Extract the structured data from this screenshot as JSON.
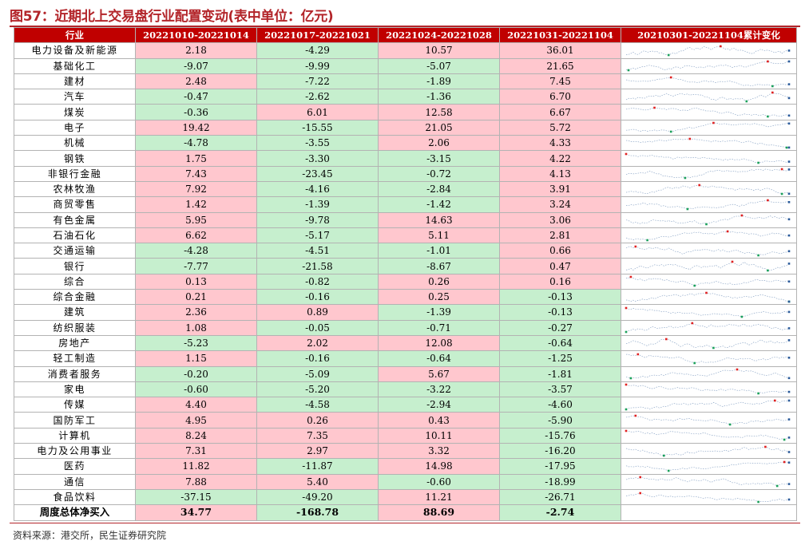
{
  "title": "图57：近期北上交易盘行业配置变动(表中单位：亿元)",
  "source": "资料来源：港交所，民生证券研究院",
  "colors": {
    "title": "#b3252a",
    "header_bg": "#c00000",
    "positive_bg": "#ffc7ce",
    "negative_bg": "#c6efce"
  },
  "headers": [
    "行业",
    "20221010-20221014",
    "20221017-20221021",
    "20221024-20221028",
    "20221031-20221104",
    "20210301-20221104累计变化"
  ],
  "rows": [
    {
      "industry": "电力设备及新能源",
      "w1": "2.18",
      "w2": "-4.29",
      "w3": "10.57",
      "w4": "36.01"
    },
    {
      "industry": "基础化工",
      "w1": "-9.07",
      "w2": "-9.99",
      "w3": "-5.07",
      "w4": "21.65"
    },
    {
      "industry": "建材",
      "w1": "2.48",
      "w2": "-7.22",
      "w3": "-1.89",
      "w4": "7.45"
    },
    {
      "industry": "汽车",
      "w1": "-0.47",
      "w2": "-2.62",
      "w3": "-1.36",
      "w4": "6.70"
    },
    {
      "industry": "煤炭",
      "w1": "-0.36",
      "w2": "6.01",
      "w3": "12.58",
      "w4": "6.67"
    },
    {
      "industry": "电子",
      "w1": "19.42",
      "w2": "-15.55",
      "w3": "21.05",
      "w4": "5.72"
    },
    {
      "industry": "机械",
      "w1": "-4.78",
      "w2": "-3.55",
      "w3": "2.06",
      "w4": "4.33"
    },
    {
      "industry": "钢铁",
      "w1": "1.75",
      "w2": "-3.30",
      "w3": "-3.15",
      "w4": "4.22"
    },
    {
      "industry": "非银行金融",
      "w1": "7.43",
      "w2": "-23.45",
      "w3": "-0.72",
      "w4": "4.13"
    },
    {
      "industry": "农林牧渔",
      "w1": "7.92",
      "w2": "-4.16",
      "w3": "-2.84",
      "w4": "3.91"
    },
    {
      "industry": "商贸零售",
      "w1": "1.42",
      "w2": "-1.39",
      "w3": "-1.42",
      "w4": "3.24"
    },
    {
      "industry": "有色金属",
      "w1": "5.95",
      "w2": "-9.78",
      "w3": "14.63",
      "w4": "3.06"
    },
    {
      "industry": "石油石化",
      "w1": "6.62",
      "w2": "-5.17",
      "w3": "5.11",
      "w4": "2.81"
    },
    {
      "industry": "交通运输",
      "w1": "-4.28",
      "w2": "-4.51",
      "w3": "-1.01",
      "w4": "0.66"
    },
    {
      "industry": "银行",
      "w1": "-7.77",
      "w2": "-21.58",
      "w3": "-8.67",
      "w4": "0.47"
    },
    {
      "industry": "综合",
      "w1": "0.13",
      "w2": "-0.82",
      "w3": "0.26",
      "w4": "0.16"
    },
    {
      "industry": "综合金融",
      "w1": "0.21",
      "w2": "-0.16",
      "w3": "0.25",
      "w4": "-0.13"
    },
    {
      "industry": "建筑",
      "w1": "2.36",
      "w2": "0.89",
      "w3": "-1.39",
      "w4": "-0.13"
    },
    {
      "industry": "纺织服装",
      "w1": "1.08",
      "w2": "-0.05",
      "w3": "-0.71",
      "w4": "-0.27"
    },
    {
      "industry": "房地产",
      "w1": "-5.23",
      "w2": "2.02",
      "w3": "12.08",
      "w4": "-0.64"
    },
    {
      "industry": "轻工制造",
      "w1": "1.15",
      "w2": "-0.16",
      "w3": "-0.64",
      "w4": "-1.25"
    },
    {
      "industry": "消费者服务",
      "w1": "-0.20",
      "w2": "-5.09",
      "w3": "5.67",
      "w4": "-1.81"
    },
    {
      "industry": "家电",
      "w1": "-0.60",
      "w2": "-5.20",
      "w3": "-3.22",
      "w4": "-3.57"
    },
    {
      "industry": "传媒",
      "w1": "4.40",
      "w2": "-4.58",
      "w3": "-2.94",
      "w4": "-4.60"
    },
    {
      "industry": "国防军工",
      "w1": "4.95",
      "w2": "0.26",
      "w3": "0.43",
      "w4": "-5.90"
    },
    {
      "industry": "计算机",
      "w1": "8.24",
      "w2": "7.35",
      "w3": "10.11",
      "w4": "-15.76"
    },
    {
      "industry": "电力及公用事业",
      "w1": "7.31",
      "w2": "2.97",
      "w3": "3.32",
      "w4": "-16.20"
    },
    {
      "industry": "医药",
      "w1": "11.82",
      "w2": "-11.87",
      "w3": "14.98",
      "w4": "-17.95"
    },
    {
      "industry": "通信",
      "w1": "7.88",
      "w2": "5.40",
      "w3": "-0.60",
      "w4": "-18.99"
    },
    {
      "industry": "食品饮料",
      "w1": "-37.15",
      "w2": "-49.20",
      "w3": "11.21",
      "w4": "-26.71"
    }
  ],
  "total": {
    "label": "周度总体净买入",
    "w1": "34.77",
    "w2": "-168.78",
    "w3": "88.69",
    "w4": "-2.74"
  }
}
